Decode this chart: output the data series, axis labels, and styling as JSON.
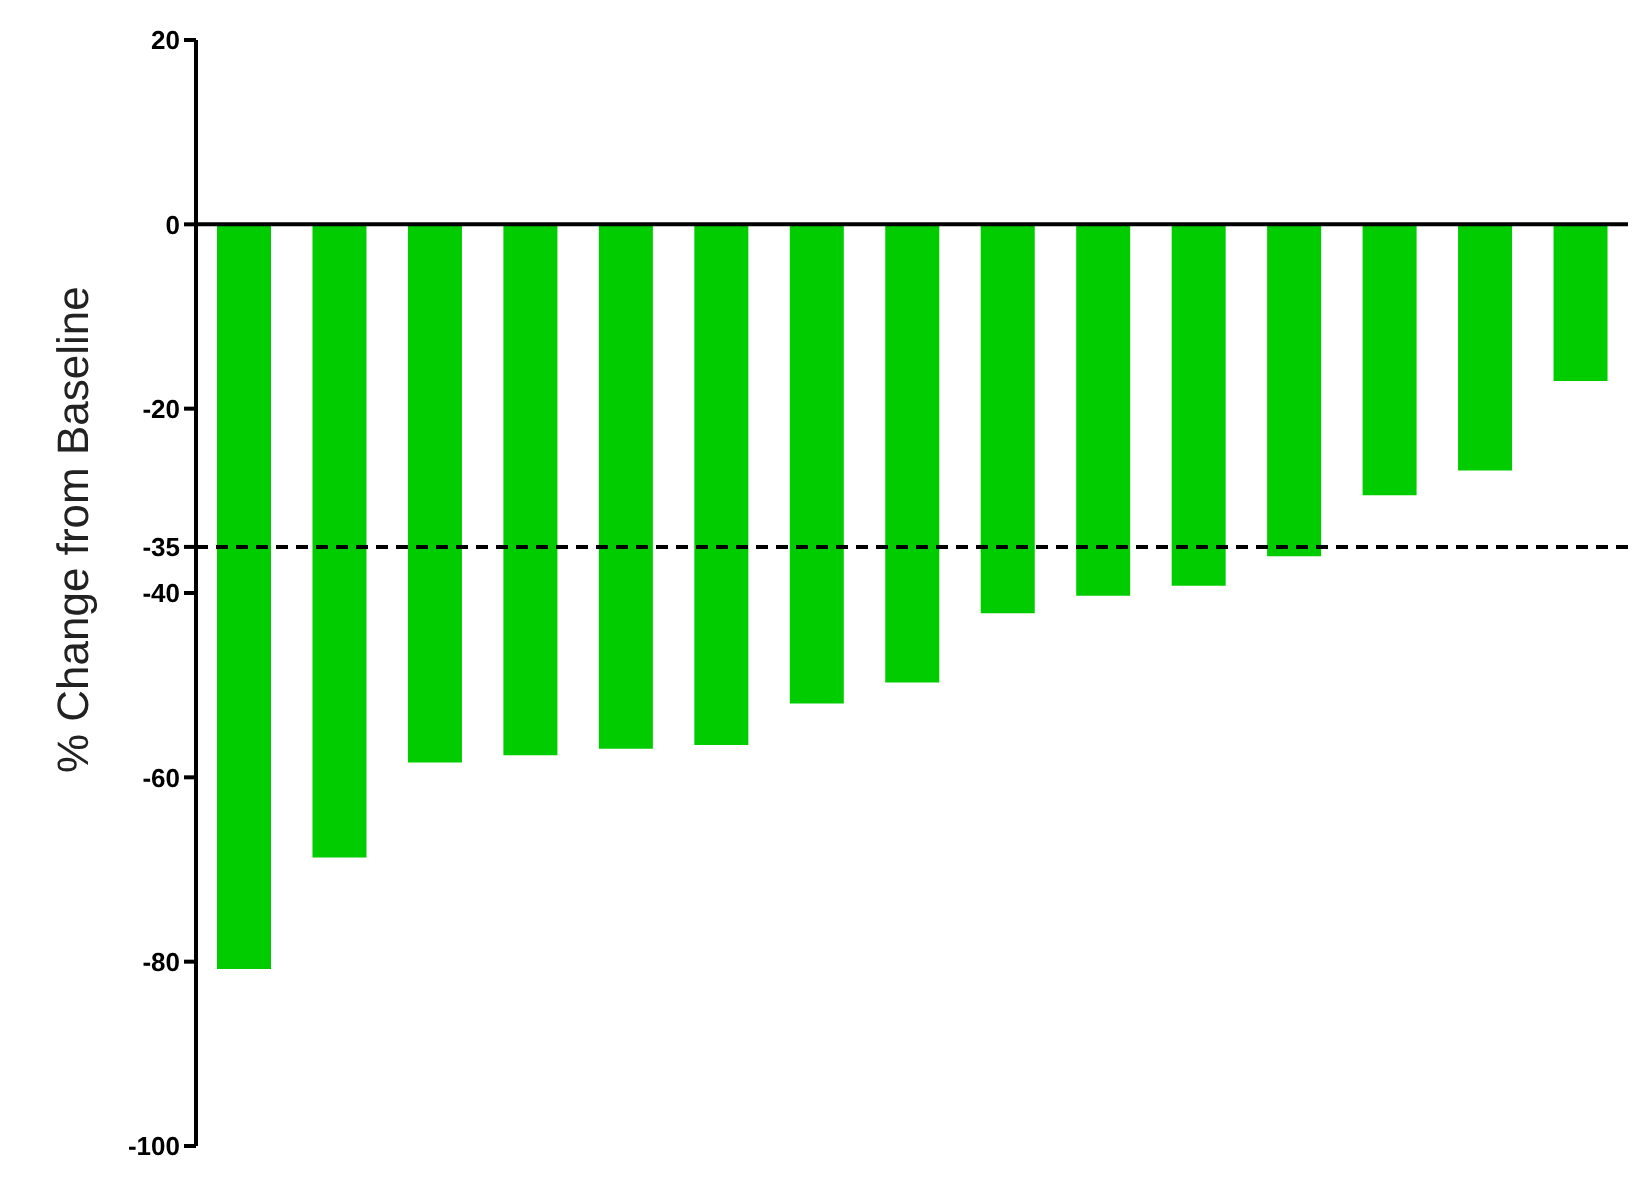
{
  "chart_data": {
    "type": "bar",
    "ylabel": "% Change from Baseline",
    "categories": [
      null,
      null,
      null,
      null,
      null,
      null,
      null,
      null,
      null,
      null,
      null,
      null,
      null,
      null,
      null
    ],
    "values": [
      -80.8,
      -68.7,
      -58.4,
      -57.6,
      -56.9,
      -56.5,
      -52,
      -49.7,
      -42.2,
      -40.3,
      -39.2,
      -36,
      -29.4,
      -26.7,
      -17
    ],
    "color": "#00cc00",
    "ylim": [
      -100,
      20
    ],
    "yticks": [
      20,
      0,
      -20,
      -35,
      -40,
      -60,
      -80,
      -100
    ],
    "ref_lines": [
      {
        "axis": "y",
        "value": 0,
        "line_style": "solid",
        "color": "#000000"
      },
      {
        "axis": "y",
        "value": -35,
        "line_style": "dashed",
        "color": "#000000"
      }
    ],
    "grid": false,
    "legend": false
  }
}
